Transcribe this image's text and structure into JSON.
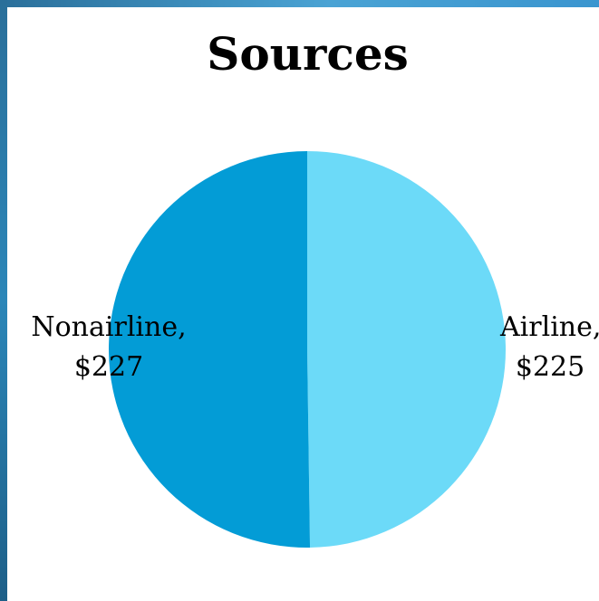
{
  "chart_data": {
    "type": "pie",
    "title": "Sources",
    "slices": [
      {
        "label": "Airline",
        "value": 225,
        "value_label": "$225",
        "color": "#6cdaf8"
      },
      {
        "label": "Nonairline",
        "value": 227,
        "value_label": "$227",
        "color": "#039cd6"
      }
    ],
    "labels": {
      "airline_name": "Airline,",
      "airline_value": "$225",
      "nonairline_name": "Nonairline,",
      "nonairline_value": "$227"
    },
    "legend": "none"
  }
}
